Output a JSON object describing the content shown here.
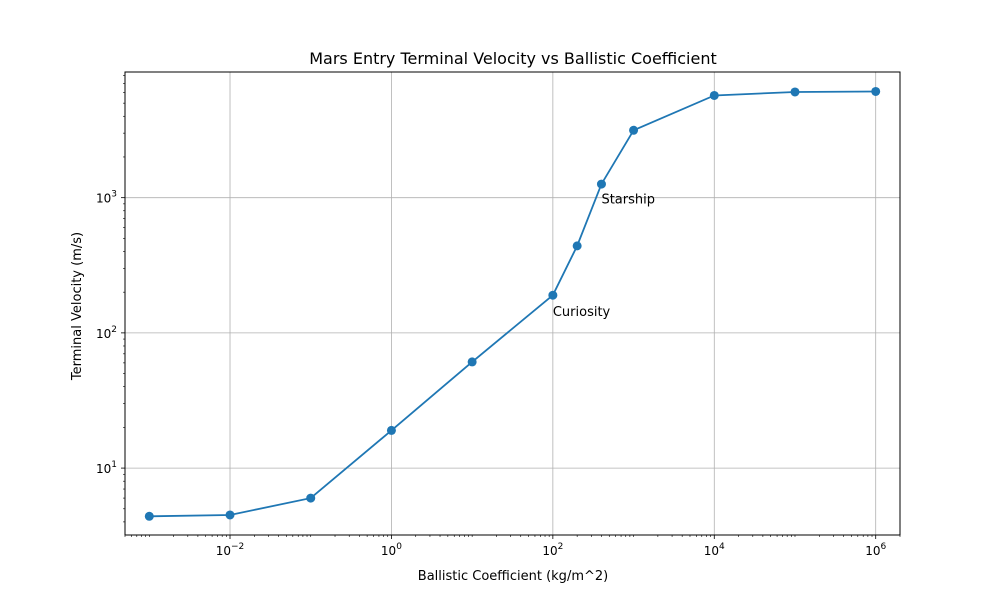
{
  "chart_data": {
    "type": "line",
    "title": "Mars Entry Terminal Velocity vs Ballistic Coefficient",
    "xlabel": "Ballistic Coefficient (kg/m^2)",
    "ylabel": "Terminal Velocity (m/s)",
    "xscale": "log",
    "yscale": "log",
    "xlim": [
      0.0005,
      2000000
    ],
    "ylim": [
      3.2,
      8500
    ],
    "grid": true,
    "series_color": "#1f77b4",
    "x_ticks": [
      {
        "base": "10",
        "exp": "−2",
        "value": 0.01
      },
      {
        "base": "10",
        "exp": "0",
        "value": 1
      },
      {
        "base": "10",
        "exp": "2",
        "value": 100
      },
      {
        "base": "10",
        "exp": "4",
        "value": 10000
      },
      {
        "base": "10",
        "exp": "6",
        "value": 1000000
      }
    ],
    "y_ticks": [
      {
        "base": "10",
        "exp": "1",
        "value": 10
      },
      {
        "base": "10",
        "exp": "2",
        "value": 100
      },
      {
        "base": "10",
        "exp": "3",
        "value": 1000
      }
    ],
    "series": [
      {
        "x": [
          0.001,
          0.01,
          0.1,
          1,
          10,
          100,
          200,
          400,
          1000,
          10000,
          100000,
          1000000
        ],
        "y": [
          4.4,
          4.5,
          6.0,
          19,
          61,
          190,
          440,
          1260,
          3150,
          5700,
          6050,
          6100
        ]
      }
    ],
    "annotations": [
      {
        "text": "Curiosity",
        "x": 100,
        "y": 145
      },
      {
        "text": "Starship",
        "x": 400,
        "y": 985
      }
    ]
  }
}
